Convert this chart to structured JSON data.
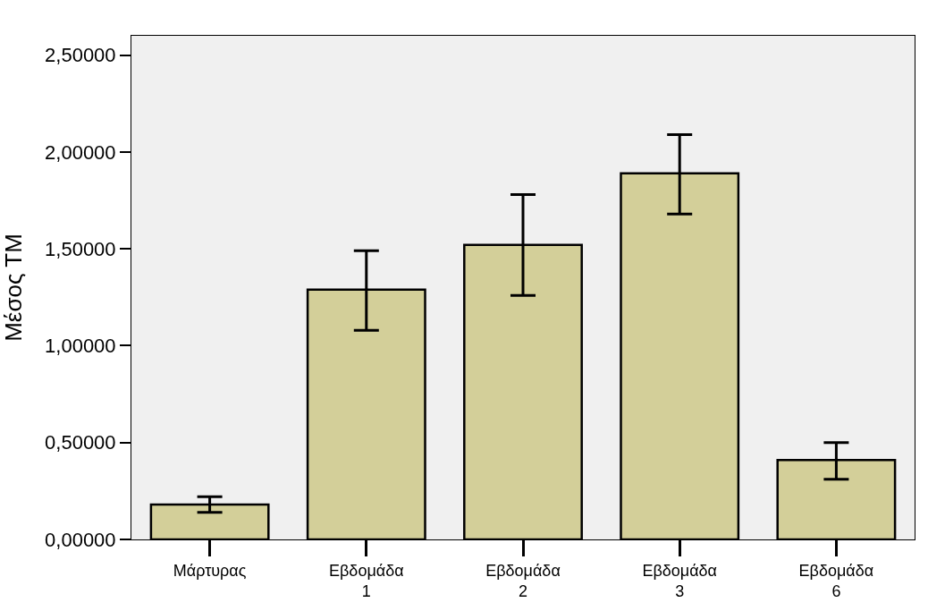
{
  "chart_data": {
    "type": "bar",
    "ylabel": "Μέσος ΤΜ",
    "categories": [
      "Μάρτυρας",
      "Εβδομάδα 1",
      "Εβδομάδα 2",
      "Εβδομάδα 3",
      "Εβδομάδα 6"
    ],
    "values": [
      0.18,
      1.29,
      1.52,
      1.89,
      0.41
    ],
    "errors": [
      [
        0.14,
        0.22
      ],
      [
        1.08,
        1.49
      ],
      [
        1.26,
        1.78
      ],
      [
        1.68,
        2.09
      ],
      [
        0.31,
        0.5
      ]
    ],
    "color": "#d3cf99",
    "ylim": [
      0,
      2.6
    ],
    "yticks": [
      {
        "value": 0,
        "label": "0,00000"
      },
      {
        "value": 0.5,
        "label": "0,50000"
      },
      {
        "value": 1,
        "label": "1,00000"
      },
      {
        "value": 1.5,
        "label": "1,50000"
      },
      {
        "value": 2,
        "label": "2,00000"
      },
      {
        "value": 2.5,
        "label": "2,50000"
      }
    ],
    "grid": false,
    "legend": false
  }
}
